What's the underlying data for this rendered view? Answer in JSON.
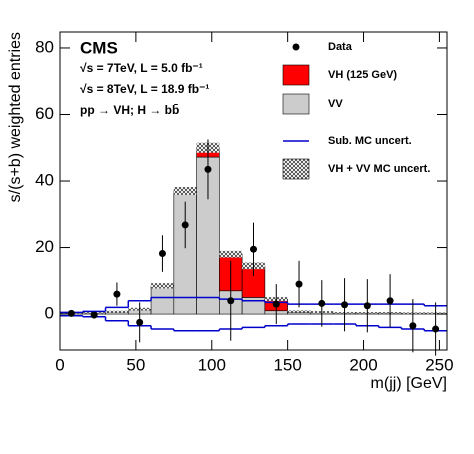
{
  "chart_data": {
    "type": "histogram",
    "annotations": [
      "CMS",
      "√s =  7TeV, L = 5.0 fb⁻¹",
      "√s =  8TeV, L = 18.9 fb⁻¹",
      "pp → VH; H → bb̄"
    ],
    "x_label": "m(jj) [GeV]",
    "y_label": "s/(s+b) weighted entries",
    "bins": [
      0,
      15,
      30,
      45,
      60,
      75,
      90,
      105,
      120,
      135,
      150,
      165,
      180,
      195,
      210,
      225,
      240,
      255
    ],
    "xlim": [
      0,
      255
    ],
    "xticks": [
      0,
      50,
      100,
      150,
      200,
      250
    ],
    "ylim": [
      -10.8,
      84.8
    ],
    "yticks": [
      0,
      20,
      40,
      60,
      80
    ],
    "series": [
      {
        "name": "Data",
        "color": "#000000",
        "values": [
          0.2,
          -0.3,
          6,
          -2.5,
          18.2,
          26.8,
          43.5,
          4,
          19.5,
          3,
          9,
          3.2,
          2.8,
          2.5,
          4,
          -3.5,
          -4.5
        ],
        "errors": [
          0.5,
          1,
          3.5,
          6,
          5.5,
          7,
          9,
          12,
          8,
          6,
          7,
          7,
          8,
          8,
          8,
          8,
          8
        ]
      },
      {
        "name": "VH (125 GeV)",
        "color": "#ff0000",
        "values": [
          0.1,
          0.1,
          0.2,
          0.3,
          0.5,
          1,
          2.8,
          11,
          9.5,
          3.5,
          0.3,
          0.2,
          0.1,
          0.1,
          0.1,
          0.1,
          0.1
        ]
      },
      {
        "name": "VV",
        "color": "#cccccc",
        "values": [
          0.3,
          0.3,
          0.5,
          1.2,
          8,
          36,
          47.2,
          7,
          5,
          1,
          0.5,
          0.4,
          0.3,
          0.3,
          0.3,
          0.2,
          0.2
        ]
      },
      {
        "name": "Sub. MC uncert.",
        "color": "#0000cc",
        "values": [
          0.5,
          0.8,
          2,
          4,
          5,
          5,
          5,
          4.5,
          4,
          3.5,
          3,
          3,
          3,
          3,
          3,
          3,
          2.5
        ],
        "lower": [
          -0.5,
          -0.8,
          -2,
          -3.5,
          -4.5,
          -5,
          -5,
          -4.5,
          -4,
          -3.5,
          -3,
          -3,
          -3,
          -3.5,
          -4,
          -4.5,
          -5
        ]
      },
      {
        "name": "VH + VV MC uncert.",
        "color": "#000000",
        "values": [
          0.2,
          0.2,
          0.3,
          0.4,
          0.8,
          1.2,
          1.5,
          1,
          1,
          0.6,
          0.3,
          0.3,
          0.2,
          0.2,
          0.2,
          0.2,
          0.2
        ]
      }
    ]
  }
}
